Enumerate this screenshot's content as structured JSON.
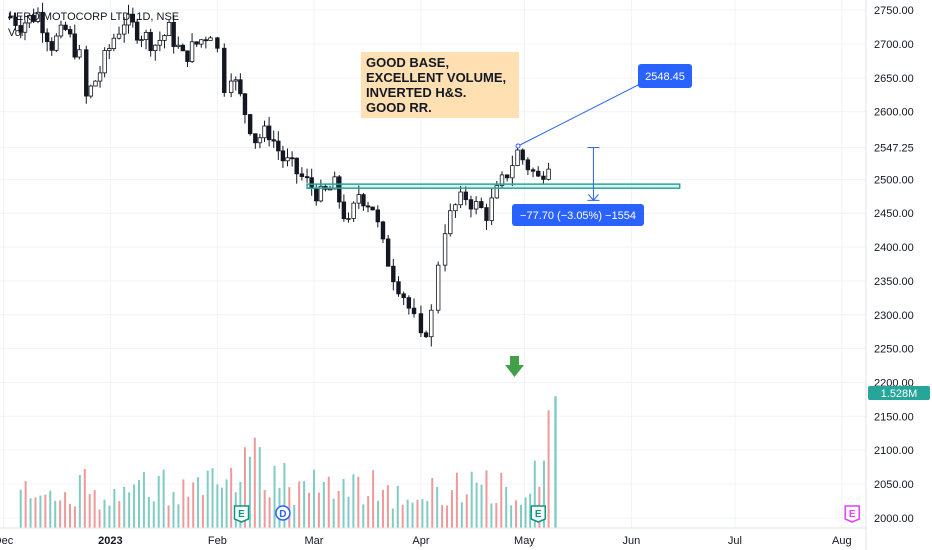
{
  "header": {
    "symbol": "HERO MOTOCORP LTD, 1D, NSE",
    "volume_label": "Vol"
  },
  "colors": {
    "up": "#26a69a",
    "down": "#ef5350",
    "accent": "#2962ff",
    "volume_badge": "#26a69a",
    "note_bg": "#ffe0b2",
    "earnings": "#089981",
    "dividend": "#2962ff",
    "future_earnings": "#e040fb",
    "arrow": "#43a047"
  },
  "annotations": {
    "note_lines": [
      "GOOD BASE,",
      "EXCELLENT VOLUME,",
      "INVERTED H&S.",
      "GOOD RR."
    ],
    "price_callout": "2548.45",
    "measure_label": "−77.70 (−3.05%) −1554",
    "volume_badge": "1.528M"
  },
  "event_markers": [
    {
      "label": "E",
      "kind": "earnings",
      "date": "2023-02-08"
    },
    {
      "label": "D",
      "kind": "dividend",
      "date": "2023-02-20"
    },
    {
      "label": "E",
      "kind": "earnings",
      "date": "2023-05-05"
    },
    {
      "label": "E",
      "kind": "future_earnings",
      "date": "2023-08-04"
    }
  ],
  "chart_data": {
    "type": "candlestick",
    "title": "HERO MOTOCORP LTD, 1D, NSE",
    "xlabel": "",
    "ylabel": "",
    "ylim": [
      1985,
      2765
    ],
    "yticks": [
      2000,
      2050,
      2100,
      2150,
      2200,
      2250,
      2300,
      2350,
      2400,
      2450,
      2500,
      2547.25,
      2600,
      2650,
      2700,
      2750
    ],
    "ytick_labels": [
      "2000.00",
      "2050.00",
      "2100.00",
      "2150.00",
      "2200.00",
      "2250.00",
      "2300.00",
      "2350.00",
      "2400.00",
      "2450.00",
      "2500.00",
      "2547.25",
      "2600.00",
      "2650.00",
      "2700.00",
      "2750.00"
    ],
    "xticks": [
      {
        "label": "Dec",
        "day": 0
      },
      {
        "label": "2023",
        "day": 31
      },
      {
        "label": "Feb",
        "day": 62
      },
      {
        "label": "Mar",
        "day": 90
      },
      {
        "label": "Apr",
        "day": 121
      },
      {
        "label": "May",
        "day": 151
      },
      {
        "label": "Jun",
        "day": 182
      },
      {
        "label": "Jul",
        "day": 212
      },
      {
        "label": "Aug",
        "day": 243
      }
    ],
    "x_range_days": [
      -1,
      250
    ],
    "support_zone": [
      2487,
      2493
    ],
    "measure": {
      "from_price": 2547,
      "to_price": 2469,
      "day": 171
    },
    "series_points": [
      [
        2,
        2740
      ],
      [
        5,
        2730
      ],
      [
        10,
        2745
      ],
      [
        14,
        2700
      ],
      [
        18,
        2720
      ],
      [
        22,
        2680
      ],
      [
        24,
        2620
      ],
      [
        28,
        2660
      ],
      [
        32,
        2710
      ],
      [
        35,
        2735
      ],
      [
        40,
        2715
      ],
      [
        44,
        2700
      ],
      [
        48,
        2720
      ],
      [
        52,
        2680
      ],
      [
        56,
        2700
      ],
      [
        60,
        2720
      ],
      [
        62,
        2690
      ],
      [
        64,
        2640
      ],
      [
        66,
        2660
      ],
      [
        70,
        2600
      ],
      [
        73,
        2560
      ],
      [
        77,
        2570
      ],
      [
        81,
        2530
      ],
      [
        85,
        2510
      ],
      [
        88,
        2495
      ],
      [
        92,
        2475
      ],
      [
        96,
        2490
      ],
      [
        100,
        2430
      ],
      [
        103,
        2480
      ],
      [
        107,
        2460
      ],
      [
        110,
        2400
      ],
      [
        113,
        2360
      ],
      [
        116,
        2330
      ],
      [
        119,
        2290
      ],
      [
        121,
        2260
      ],
      [
        124,
        2300
      ],
      [
        126,
        2380
      ],
      [
        128,
        2430
      ],
      [
        131,
        2460
      ],
      [
        134,
        2475
      ],
      [
        137,
        2460
      ],
      [
        140,
        2450
      ],
      [
        143,
        2480
      ],
      [
        146,
        2510
      ],
      [
        149,
        2540
      ],
      [
        152,
        2520
      ],
      [
        155,
        2500
      ],
      [
        158,
        2530
      ],
      [
        160,
        2545
      ]
    ],
    "volume_points": [
      [
        5,
        0.5
      ],
      [
        15,
        0.4
      ],
      [
        25,
        0.55
      ],
      [
        35,
        0.45
      ],
      [
        45,
        0.6
      ],
      [
        55,
        0.5
      ],
      [
        62,
        0.55
      ],
      [
        70,
        1.1
      ],
      [
        80,
        0.7
      ],
      [
        90,
        0.6
      ],
      [
        100,
        0.5
      ],
      [
        110,
        0.55
      ],
      [
        120,
        0.6
      ],
      [
        130,
        0.5
      ],
      [
        140,
        0.55
      ],
      [
        150,
        0.65
      ],
      [
        158,
        1.1
      ],
      [
        160,
        1.528
      ]
    ],
    "volume_max": 1.6
  }
}
